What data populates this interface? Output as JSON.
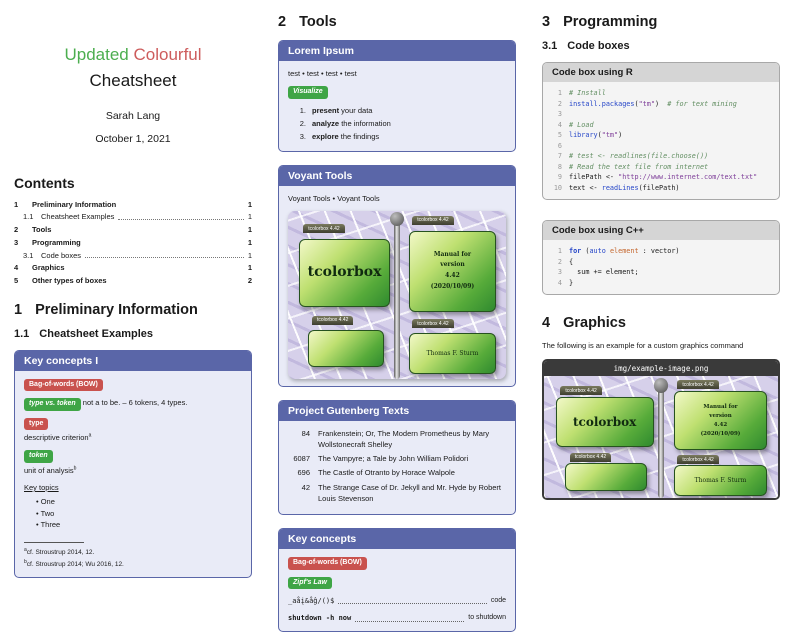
{
  "colors": {
    "accent_purple": "#5a66a8",
    "badge_red": "#c9524e",
    "badge_green": "#3fa546",
    "title_green": "#4cae4f",
    "title_red": "#cd5c5c"
  },
  "header": {
    "title_word1": "Updated",
    "title_word2": "Colourful",
    "title_line2": "Cheatsheet",
    "author": "Sarah Lang",
    "date": "October 1, 2021"
  },
  "toc": {
    "heading": "Contents",
    "entries": [
      {
        "num": "1",
        "label": "Preliminary Information",
        "page": "1"
      },
      {
        "num": "1.1",
        "label": "Cheatsheet Examples",
        "page": "1"
      },
      {
        "num": "2",
        "label": "Tools",
        "page": "1"
      },
      {
        "num": "3",
        "label": "Programming",
        "page": "1"
      },
      {
        "num": "3.1",
        "label": "Code boxes",
        "page": "1"
      },
      {
        "num": "4",
        "label": "Graphics",
        "page": "1"
      },
      {
        "num": "5",
        "label": "Other types of boxes",
        "page": "2"
      }
    ]
  },
  "section1": {
    "num": "1",
    "title": "Preliminary Information",
    "sub_num": "1.1",
    "sub_title": "Cheatsheet Examples"
  },
  "kc1": {
    "title": "Key concepts I",
    "badge_bow": "Bag-of-words (BOW)",
    "badge_type_token": "type vs. token",
    "type_token_text": "not a to be. – 6 tokens, 4 types.",
    "badge_type": "type",
    "type_text": "descriptive criterion",
    "type_fn": "a",
    "badge_token": "token",
    "token_text": "unit of analysis",
    "token_fn": "b",
    "key_topics_label": "Key topics",
    "topics": [
      "One",
      "Two",
      "Three"
    ],
    "fn_a_marker": "a",
    "footnote_a": "cf. Stroustrup 2014, 12.",
    "fn_b_marker": "b",
    "footnote_b": "cf. Stroustrup 2014; Wu 2016, 12."
  },
  "section2": {
    "num": "2",
    "title": "Tools"
  },
  "lorem": {
    "title": "Lorem Ipsum",
    "test_line": "test • test • test • test",
    "badge": "Visualize",
    "items": [
      {
        "num": "1.",
        "bold": "present",
        "rest": " your data"
      },
      {
        "num": "2.",
        "bold": "analyze",
        "rest": " the information"
      },
      {
        "num": "3.",
        "bold": "explore",
        "rest": " the findings"
      }
    ]
  },
  "voyant": {
    "title": "Voyant Tools",
    "link1": "Voyant Tools",
    "separator": "•",
    "link2": "Voyant Tools"
  },
  "tcb": {
    "tab": "tcolorbox 4.42",
    "name": "tcolorbox",
    "manual_l1": "Manual for",
    "manual_l2": "version",
    "manual_l3": "4.42",
    "manual_l4": "(2020/10/09)",
    "author": "Thomas F. Sturm"
  },
  "gutenberg": {
    "title": "Project Gutenberg Texts",
    "rows": [
      {
        "id": "84",
        "title": "Frankenstein; Or, The Modern Prometheus by Mary Wollstonecraft Shelley"
      },
      {
        "id": "6087",
        "title": "The Vampyre; a Tale by John William Polidori"
      },
      {
        "id": "696",
        "title": "The Castle of Otranto by Horace Walpole"
      },
      {
        "id": "42",
        "title": "The Strange Case of Dr. Jekyll and Mr. Hyde by Robert Louis Stevenson"
      }
    ]
  },
  "kc2": {
    "title": "Key concepts",
    "badge_bow": "Bag-of-words (BOW)",
    "badge_zipf": "Zipf's Law",
    "code_left": "_aåį&åĝ/()$",
    "code_right": "code",
    "shutdown_left": "shutdown -h now",
    "shutdown_right": "to shutdown"
  },
  "section3": {
    "num": "3",
    "title": "Programming",
    "sub_num": "3.1",
    "sub_title": "Code boxes"
  },
  "r_box": {
    "title": "Code box using R",
    "lines": [
      [
        {
          "c": "c",
          "t": "# Install"
        }
      ],
      [
        {
          "c": "f",
          "t": "install.packages"
        },
        {
          "c": "p",
          "t": "("
        },
        {
          "c": "s",
          "t": "\"tm\""
        },
        {
          "c": "p",
          "t": ")  "
        },
        {
          "c": "c",
          "t": "# for text mining"
        }
      ],
      [],
      [
        {
          "c": "c",
          "t": "# Load"
        }
      ],
      [
        {
          "c": "f",
          "t": "library"
        },
        {
          "c": "p",
          "t": "("
        },
        {
          "c": "s",
          "t": "\"tm\""
        },
        {
          "c": "p",
          "t": ")"
        }
      ],
      [],
      [
        {
          "c": "c",
          "t": "# test <- readlines(file.choose())"
        }
      ],
      [
        {
          "c": "c",
          "t": "# Read the text file from internet"
        }
      ],
      [
        {
          "c": "p",
          "t": "filePath <- "
        },
        {
          "c": "s",
          "t": "\"http://www.internet.com/text.txt\""
        }
      ],
      [
        {
          "c": "p",
          "t": "text <- "
        },
        {
          "c": "f",
          "t": "readLines"
        },
        {
          "c": "p",
          "t": "(filePath)"
        }
      ]
    ]
  },
  "cpp_box": {
    "title": "Code box using C++",
    "lines": [
      [
        {
          "c": "k",
          "t": "for"
        },
        {
          "c": "p",
          "t": " ("
        },
        {
          "c": "f",
          "t": "auto"
        },
        {
          "c": "p",
          "t": " "
        },
        {
          "c": "o",
          "t": "element"
        },
        {
          "c": "p",
          "t": " : vector)"
        }
      ],
      [
        {
          "c": "p",
          "t": "{"
        }
      ],
      [
        {
          "c": "p",
          "t": "  sum += element;"
        }
      ],
      [
        {
          "c": "p",
          "t": "}"
        }
      ]
    ]
  },
  "section4": {
    "num": "4",
    "title": "Graphics",
    "intro": "The following is an example for a custom graphics command",
    "image_filename": "img/example-image.png"
  }
}
